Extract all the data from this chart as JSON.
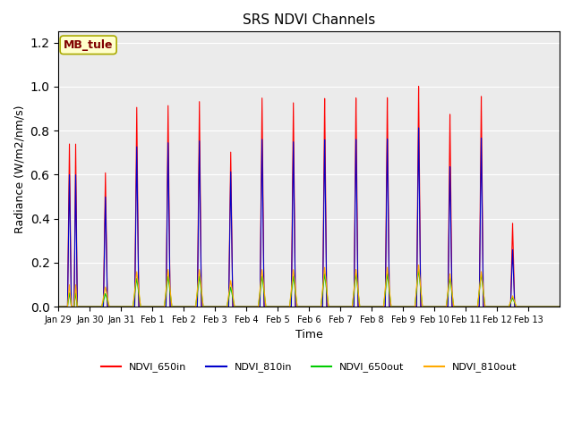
{
  "title": "SRS NDVI Channels",
  "xlabel": "Time",
  "ylabel": "Radiance (W/m2/nm/s)",
  "annotation": "MB_tule",
  "ylim": [
    0,
    1.25
  ],
  "yticks": [
    0.0,
    0.2,
    0.4,
    0.6,
    0.8,
    1.0,
    1.2
  ],
  "xtick_labels": [
    "Jan 29",
    "Jan 30",
    "Jan 31",
    "Feb 1",
    "Feb 2",
    "Feb 3",
    "Feb 4",
    "Feb 5",
    "Feb 6",
    "Feb 7",
    "Feb 8",
    "Feb 9",
    "Feb 10",
    "Feb 11",
    "Feb 12",
    "Feb 13"
  ],
  "n_days": 16,
  "colors": {
    "NDVI_650in": "#ff0000",
    "NDVI_810in": "#0000cc",
    "NDVI_650out": "#00cc00",
    "NDVI_810out": "#ffaa00"
  },
  "peak_650in": [
    0.74,
    0.61,
    0.91,
    0.92,
    0.94,
    0.71,
    0.96,
    0.94,
    0.96,
    0.96,
    0.96,
    1.01,
    0.88,
    0.96,
    0.38,
    0.0
  ],
  "peak_810in": [
    0.6,
    0.5,
    0.73,
    0.75,
    0.76,
    0.62,
    0.77,
    0.76,
    0.77,
    0.77,
    0.77,
    0.82,
    0.64,
    0.77,
    0.26,
    0.0
  ],
  "peak_650out": [
    0.07,
    0.06,
    0.13,
    0.14,
    0.14,
    0.09,
    0.14,
    0.14,
    0.15,
    0.15,
    0.15,
    0.17,
    0.13,
    0.15,
    0.04,
    0.0
  ],
  "peak_810out": [
    0.1,
    0.09,
    0.16,
    0.17,
    0.17,
    0.12,
    0.17,
    0.17,
    0.18,
    0.17,
    0.18,
    0.19,
    0.15,
    0.16,
    0.05,
    0.0
  ],
  "bg_color": "#ebebeb",
  "annotation_bg": "#ffffcc",
  "annotation_border": "#aaaa00",
  "annotation_text_color": "#800000"
}
